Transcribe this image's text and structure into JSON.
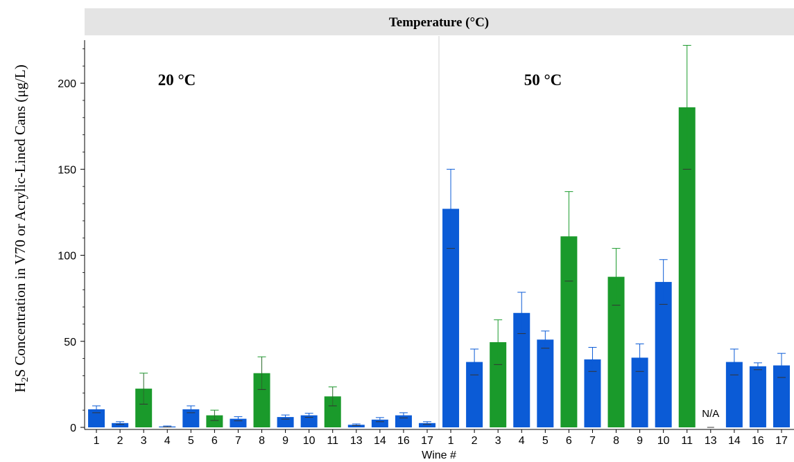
{
  "chart_data": {
    "type": "bar",
    "header": "Temperature (°C)",
    "ylabel_prefix": "H",
    "ylabel_sub": "2",
    "ylabel_rest": "S Concentration in V70 or Acrylic-Lined Cans (μg/L)",
    "xlabel": "Wine #",
    "ylim": [
      0,
      225
    ],
    "yticks": [
      0,
      50,
      100,
      150,
      200
    ],
    "colors": {
      "blue": "#0b5bd6",
      "green": "#1a9a2b",
      "header_bg": "#e4e4e4"
    },
    "panels": [
      {
        "label": "20 °C",
        "categories": [
          "1",
          "2",
          "3",
          "4",
          "5",
          "6",
          "7",
          "8",
          "9",
          "10",
          "11",
          "13",
          "14",
          "16",
          "17"
        ],
        "values": [
          10.5,
          2.5,
          22.5,
          0.5,
          10.5,
          7,
          5,
          31.5,
          6,
          7,
          18,
          1.5,
          4.5,
          7,
          2.5
        ],
        "errors": [
          2,
          0.8,
          9,
          0.3,
          2,
          3,
          1.2,
          9.5,
          1.2,
          1.2,
          5.5,
          0.5,
          1.2,
          1.5,
          0.8
        ],
        "colors": [
          "blue",
          "blue",
          "green",
          "blue",
          "blue",
          "green",
          "blue",
          "green",
          "blue",
          "blue",
          "green",
          "blue",
          "blue",
          "blue",
          "blue"
        ],
        "annotations": []
      },
      {
        "label": "50 °C",
        "categories": [
          "1",
          "2",
          "3",
          "4",
          "5",
          "6",
          "7",
          "8",
          "9",
          "10",
          "11",
          "13",
          "14",
          "16",
          "17"
        ],
        "values": [
          127,
          38,
          49.5,
          66.5,
          51,
          111,
          39.5,
          87.5,
          40.5,
          84.5,
          186,
          0,
          38,
          35.5,
          36
        ],
        "errors": [
          23,
          7.5,
          13,
          12,
          5,
          26,
          7,
          16.5,
          8,
          13,
          36,
          0,
          7.5,
          2,
          7
        ],
        "colors": [
          "blue",
          "blue",
          "green",
          "blue",
          "blue",
          "green",
          "blue",
          "green",
          "blue",
          "blue",
          "green",
          "blue",
          "blue",
          "blue",
          "blue"
        ],
        "annotations": [
          {
            "category": "13",
            "text": "N/A"
          }
        ]
      }
    ]
  }
}
